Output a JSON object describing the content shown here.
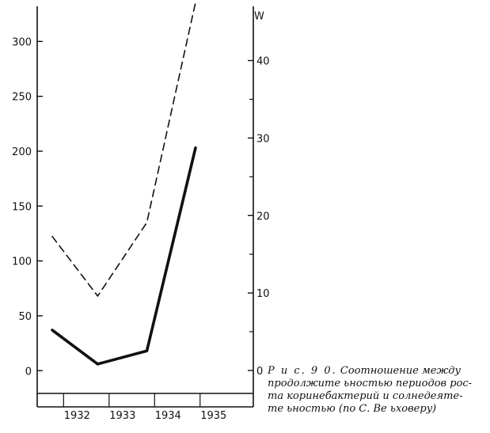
{
  "chart_data": {
    "type": "line",
    "x": [
      1931.75,
      1932.75,
      1933.83,
      1934.9
    ],
    "xticks": [
      "1932",
      "1933",
      "1934",
      "1935"
    ],
    "xtick_values": [
      1932,
      1933,
      1934,
      1935
    ],
    "xlim": [
      1931.42,
      1936.17
    ],
    "left_axis": {
      "label": "",
      "ticks": [
        "0",
        "50",
        "100",
        "150",
        "200",
        "250",
        "300"
      ],
      "tick_values": [
        0,
        50,
        100,
        150,
        200,
        250,
        300
      ],
      "ylim": [
        -33,
        332
      ]
    },
    "right_axis": {
      "label": "W",
      "ticks": [
        "0",
        "10",
        "20",
        "30",
        "40"
      ],
      "tick_values": [
        0,
        10,
        20,
        30,
        40
      ],
      "minor_tick_values": [
        5,
        15,
        25,
        35
      ],
      "ylim": [
        -4.7,
        47
      ]
    },
    "series": [
      {
        "style": "solid",
        "axis": "left",
        "values": [
          37,
          6,
          18,
          203
        ]
      },
      {
        "style": "dashed",
        "axis": "right",
        "values": [
          17.3,
          9.6,
          19.1,
          47.5
        ]
      }
    ],
    "grid": false,
    "legend": "none"
  },
  "caption": {
    "fig": "Р и с.   9 0.",
    "line1": "Соотношение  между",
    "line2": "продолжите ьностью периодов рос-",
    "line3": "та  коринебактерий  и  солнедеяте-",
    "line4": "те ьностью (по  С.  Ве ьховерy)"
  },
  "colors": {
    "ink": "#111111",
    "background": "#ffffff"
  }
}
